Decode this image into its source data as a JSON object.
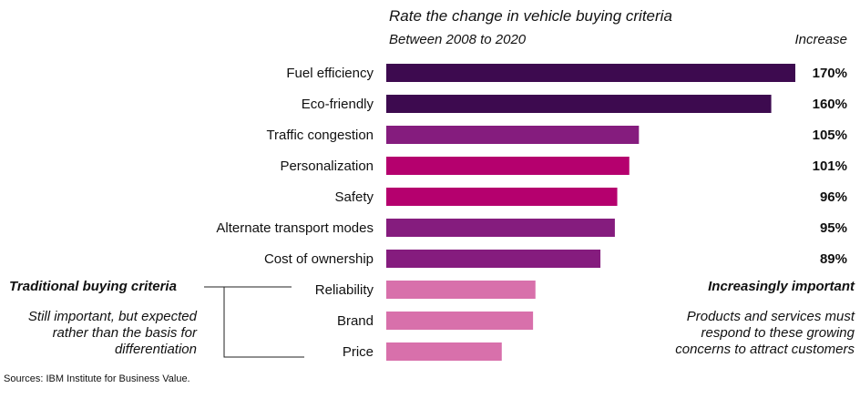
{
  "chart_data": {
    "type": "bar",
    "orientation": "horizontal",
    "title": "Rate the change in vehicle buying criteria",
    "subtitle": "Between 2008 to 2020",
    "value_column_header": "Increase",
    "categories": [
      "Fuel efficiency",
      "Eco-friendly",
      "Traffic congestion",
      "Personalization",
      "Safety",
      "Alternate transport modes",
      "Cost of ownership",
      "Reliability",
      "Brand",
      "Price"
    ],
    "values": [
      170,
      160,
      105,
      101,
      96,
      95,
      89,
      62,
      61,
      48
    ],
    "value_labels": [
      "170%",
      "160%",
      "105%",
      "101%",
      "96%",
      "95%",
      "89%",
      "",
      "",
      ""
    ],
    "colors": [
      "#3d0a4f",
      "#3d0a4f",
      "#851c7e",
      "#b5006e",
      "#b5006e",
      "#851c7e",
      "#851c7e",
      "#d870ab",
      "#d870ab",
      "#d870ab"
    ],
    "xlim": [
      0,
      170
    ],
    "grid": false
  },
  "notes": {
    "left_title": "Traditional buying criteria",
    "left_body": "Still important, but expected rather than the basis for differentiation",
    "right_title": "Increasingly important",
    "right_body": "Products and services must respond to these growing concerns to attract customers"
  },
  "source": "Sources: IBM Institute for Business Value."
}
